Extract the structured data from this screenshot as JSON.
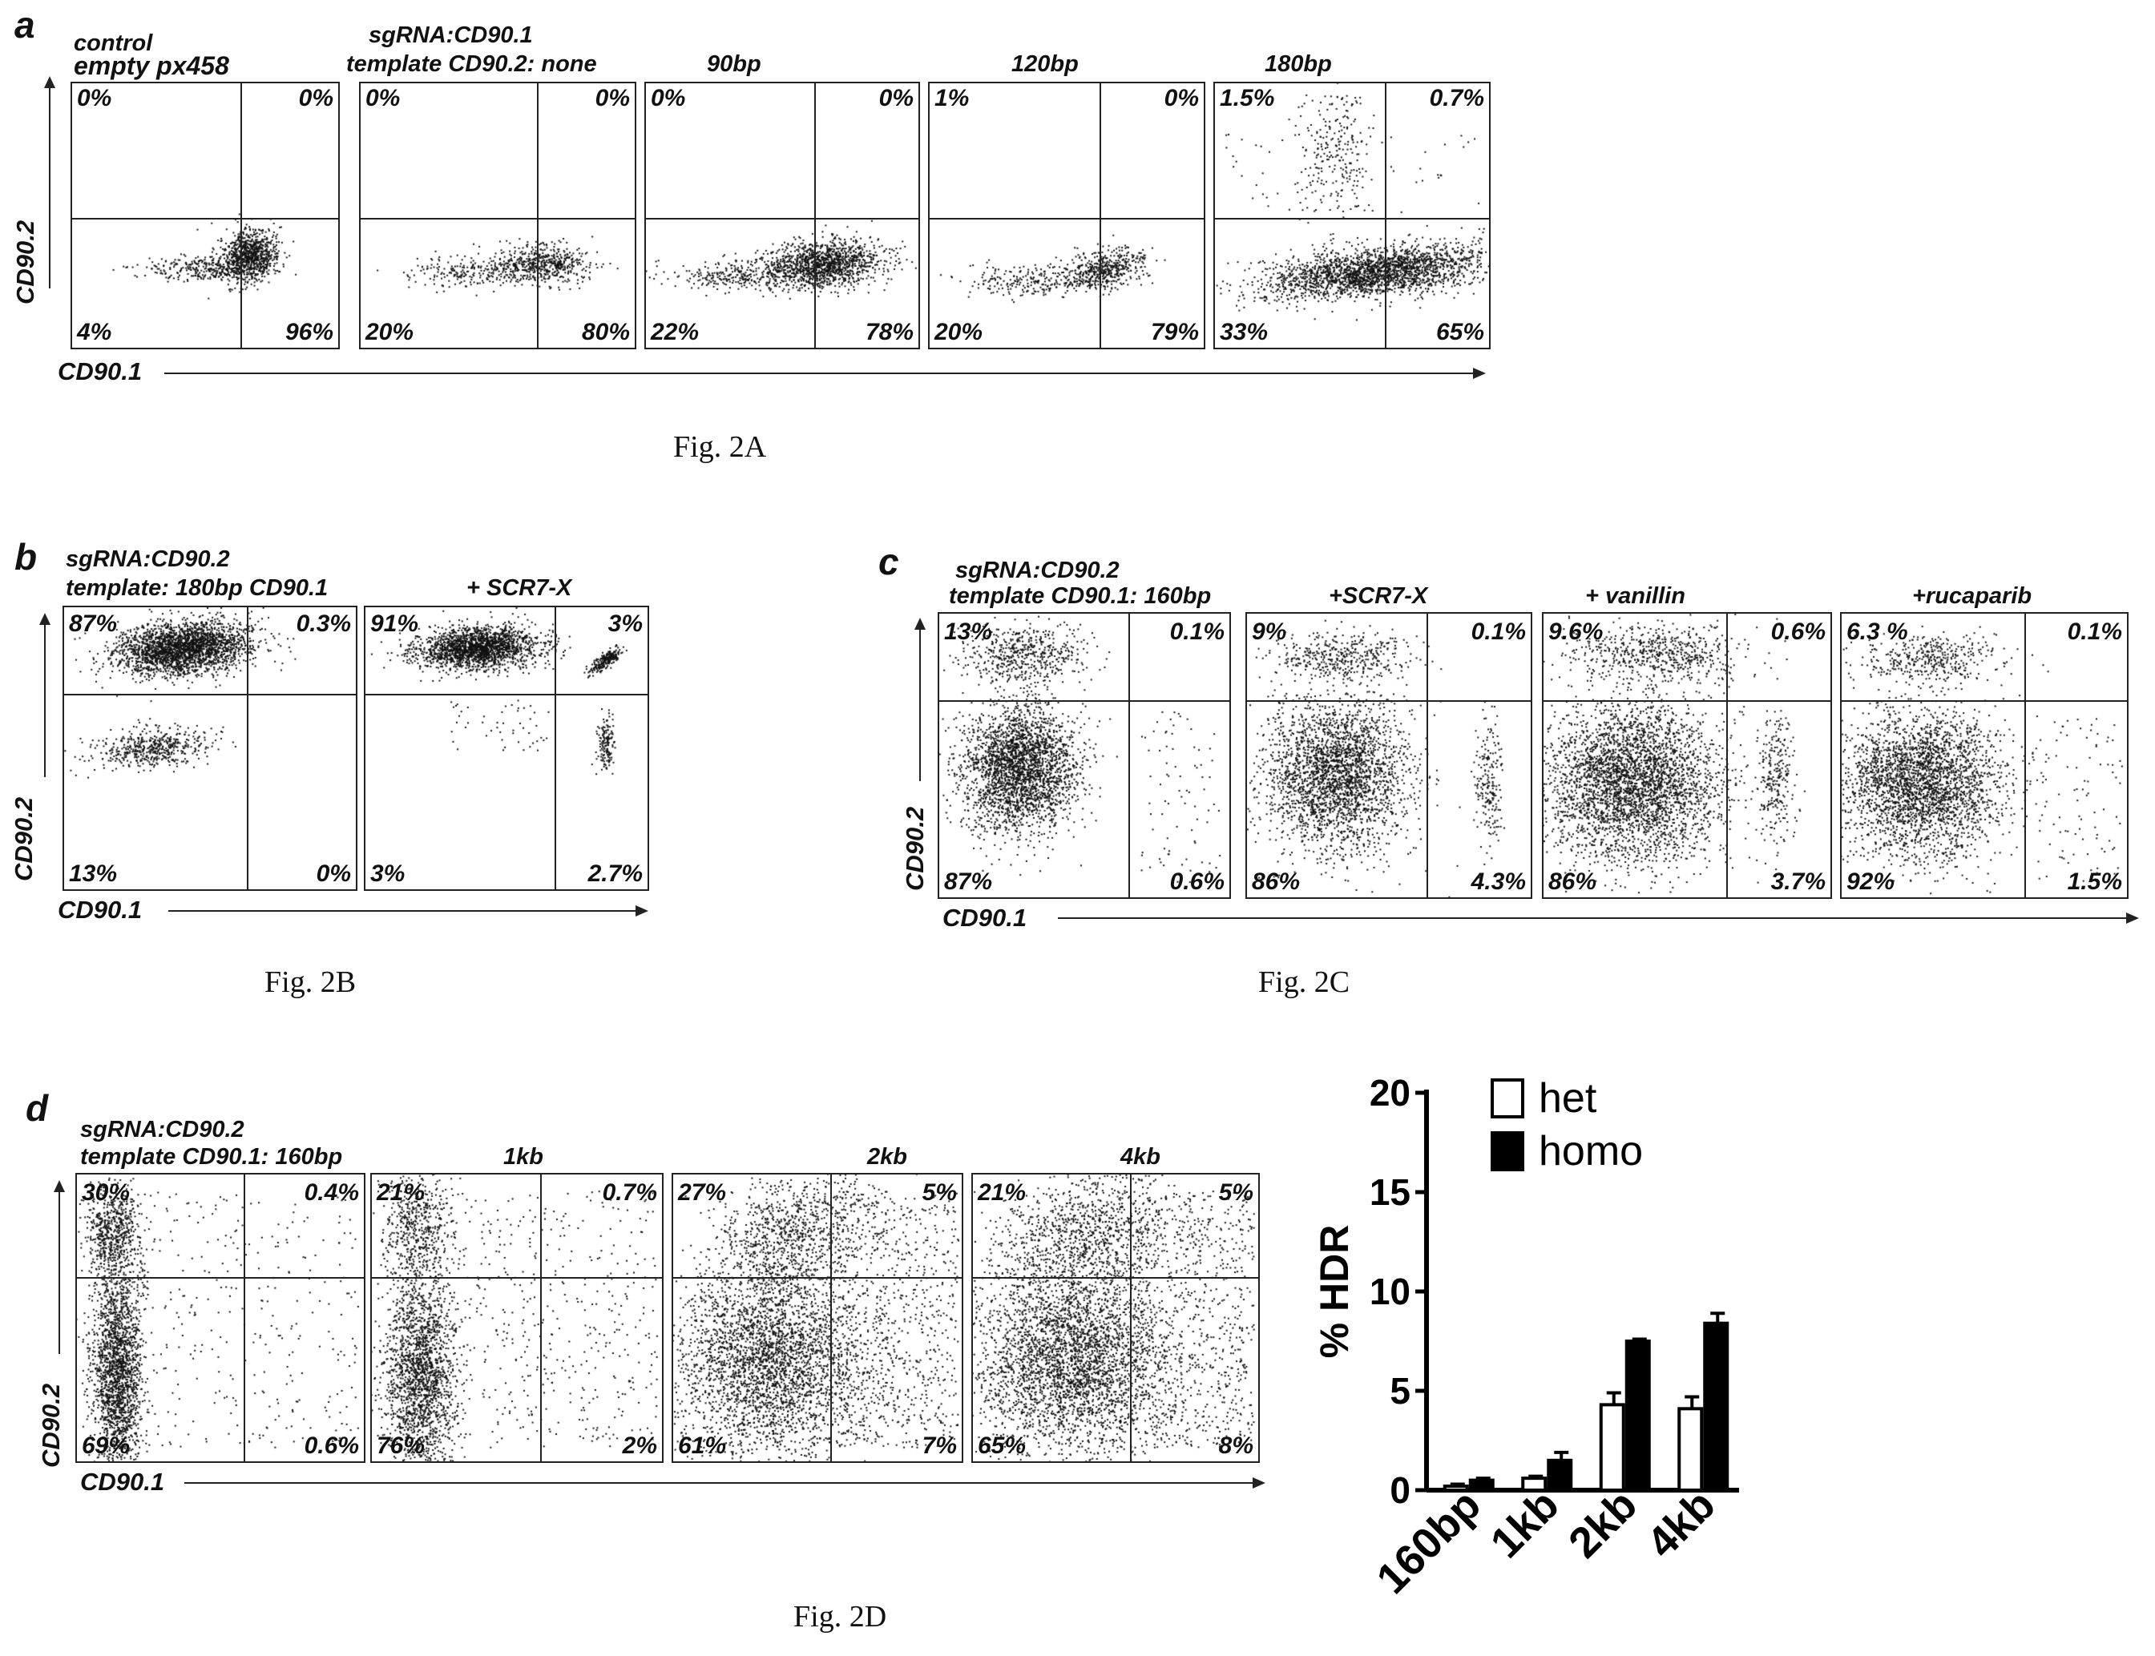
{
  "panels": [
    {
      "letter": "a",
      "caption": "Fig. 2A",
      "xlabel": "CD90.1",
      "ylabel": "CD90.2",
      "plots": [
        {
          "header": [
            "control",
            "empty px458"
          ],
          "q": [
            "0%",
            "0%",
            "4%",
            "96%"
          ]
        },
        {
          "header": [
            "sgRNA:CD90.1",
            "template  CD90.2: none"
          ],
          "q": [
            "0%",
            "0%",
            "20%",
            "80%"
          ]
        },
        {
          "header": [
            "90bp"
          ],
          "q": [
            "0%",
            "0%",
            "22%",
            "78%"
          ]
        },
        {
          "header": [
            "120bp"
          ],
          "q": [
            "1%",
            "0%",
            "20%",
            "79%"
          ]
        },
        {
          "header": [
            "180bp"
          ],
          "q": [
            "1.5%",
            "0.7%",
            "33%",
            "65%"
          ]
        }
      ]
    },
    {
      "letter": "b",
      "caption": "Fig. 2B",
      "xlabel": "CD90.1",
      "ylabel": "CD90.2",
      "plots": [
        {
          "header": [
            "sgRNA:CD90.2",
            "template: 180bp  CD90.1"
          ],
          "q": [
            "87%",
            "0.3%",
            "13%",
            "0%"
          ]
        },
        {
          "header": [
            "+ SCR7-X"
          ],
          "q": [
            "91%",
            "3%",
            "3%",
            "2.7%"
          ]
        }
      ]
    },
    {
      "letter": "c",
      "caption": "Fig. 2C",
      "xlabel": "CD90.1",
      "ylabel": "CD90.2",
      "plots": [
        {
          "header": [
            "sgRNA:CD90.2",
            "template  CD90.1: 160bp"
          ],
          "q": [
            "13%",
            "0.1%",
            "87%",
            "0.6%"
          ]
        },
        {
          "header": [
            "+SCR7-X"
          ],
          "q": [
            "9%",
            "0.1%",
            "86%",
            "4.3%"
          ]
        },
        {
          "header": [
            "+ vanillin"
          ],
          "q": [
            "9.6%",
            "0.6%",
            "86%",
            "3.7%"
          ]
        },
        {
          "header": [
            "+rucaparib"
          ],
          "q": [
            "6.3 %",
            "0.1%",
            "92%",
            "1.5%"
          ]
        }
      ]
    },
    {
      "letter": "d",
      "caption": "Fig. 2D",
      "xlabel": "CD90.1",
      "ylabel": "CD90.2",
      "plots": [
        {
          "header": [
            "sgRNA:CD90.2",
            "template  CD90.1: 160bp"
          ],
          "q": [
            "30%",
            "0.4%",
            "69%",
            "0.6%"
          ]
        },
        {
          "header": [
            "1kb"
          ],
          "q": [
            "21%",
            "0.7%",
            "76%",
            "2%"
          ]
        },
        {
          "header": [
            "2kb"
          ],
          "q": [
            "27%",
            "5%",
            "61%",
            "7%"
          ]
        },
        {
          "header": [
            "4kb"
          ],
          "q": [
            "21%",
            "5%",
            "65%",
            "8%"
          ]
        }
      ]
    }
  ],
  "chart_data": {
    "type": "bar",
    "categories": [
      "160bp",
      "1kb",
      "2kb",
      "4kb"
    ],
    "series": [
      {
        "name": "het",
        "values": [
          0.2,
          0.6,
          4.3,
          4.1
        ],
        "errors": [
          0.1,
          0.1,
          0.6,
          0.6
        ],
        "color": "#ffffff"
      },
      {
        "name": "homo",
        "values": [
          0.5,
          1.5,
          7.5,
          8.4
        ],
        "errors": [
          0.1,
          0.4,
          0.1,
          0.5
        ],
        "color": "#000000"
      }
    ],
    "ylabel": "% HDR",
    "ylim": [
      0,
      20
    ],
    "yticks": [
      "0",
      "5",
      "10",
      "15",
      "20"
    ],
    "legend_position": "top"
  }
}
